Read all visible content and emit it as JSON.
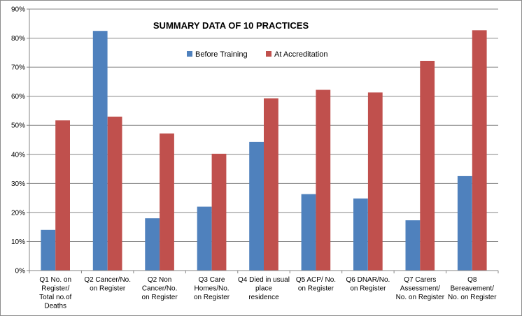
{
  "chart_data": {
    "type": "bar",
    "title": "SUMMARY DATA OF 10 PRACTICES",
    "xlabel": "",
    "ylabel": "",
    "ylim": [
      0,
      90
    ],
    "y_ticks": [
      "0%",
      "10%",
      "20%",
      "30%",
      "40%",
      "50%",
      "60%",
      "70%",
      "80%",
      "90%"
    ],
    "grid": "horizontal",
    "legend_position": "top-center",
    "categories": [
      "Q1  No. on Register/ Total no.of Deaths",
      "Q2 Cancer/No. on Register",
      "Q2 Non Cancer/No. on Register",
      "Q3 Care Homes/No. on Register",
      "Q4 Died in usual place residence",
      "Q5 ACP/ No. on Register",
      "Q6 DNAR/No. on Register",
      "Q7 Carers Assessment/ No. on Register",
      "Q8 Bereavement/ No. on Register"
    ],
    "category_lines": [
      [
        "Q1  No. on",
        "Register/",
        "Total no.of",
        "Deaths"
      ],
      [
        "Q2 Cancer/No.",
        "on Register"
      ],
      [
        "Q2 Non",
        "Cancer/No.",
        "on Register"
      ],
      [
        "Q3 Care",
        "Homes/No.",
        "on Register"
      ],
      [
        "Q4 Died in usual",
        "place",
        "residence"
      ],
      [
        "Q5 ACP/ No.",
        "on Register"
      ],
      [
        "Q6 DNAR/No.",
        "on Register"
      ],
      [
        "Q7 Carers",
        "Assessment/",
        "No. on Register"
      ],
      [
        "Q8",
        "Bereavement/",
        "No. on Register"
      ]
    ],
    "series": [
      {
        "name": "Before Training",
        "color": "#4F81BD",
        "values": [
          14,
          82.5,
          18,
          22,
          44.3,
          26.3,
          24.8,
          17.3,
          32.5
        ]
      },
      {
        "name": "At Accreditation",
        "color": "#C0504D",
        "values": [
          51.7,
          53,
          47.2,
          40.2,
          59.3,
          62.2,
          61.3,
          72.2,
          82.7
        ]
      }
    ]
  }
}
